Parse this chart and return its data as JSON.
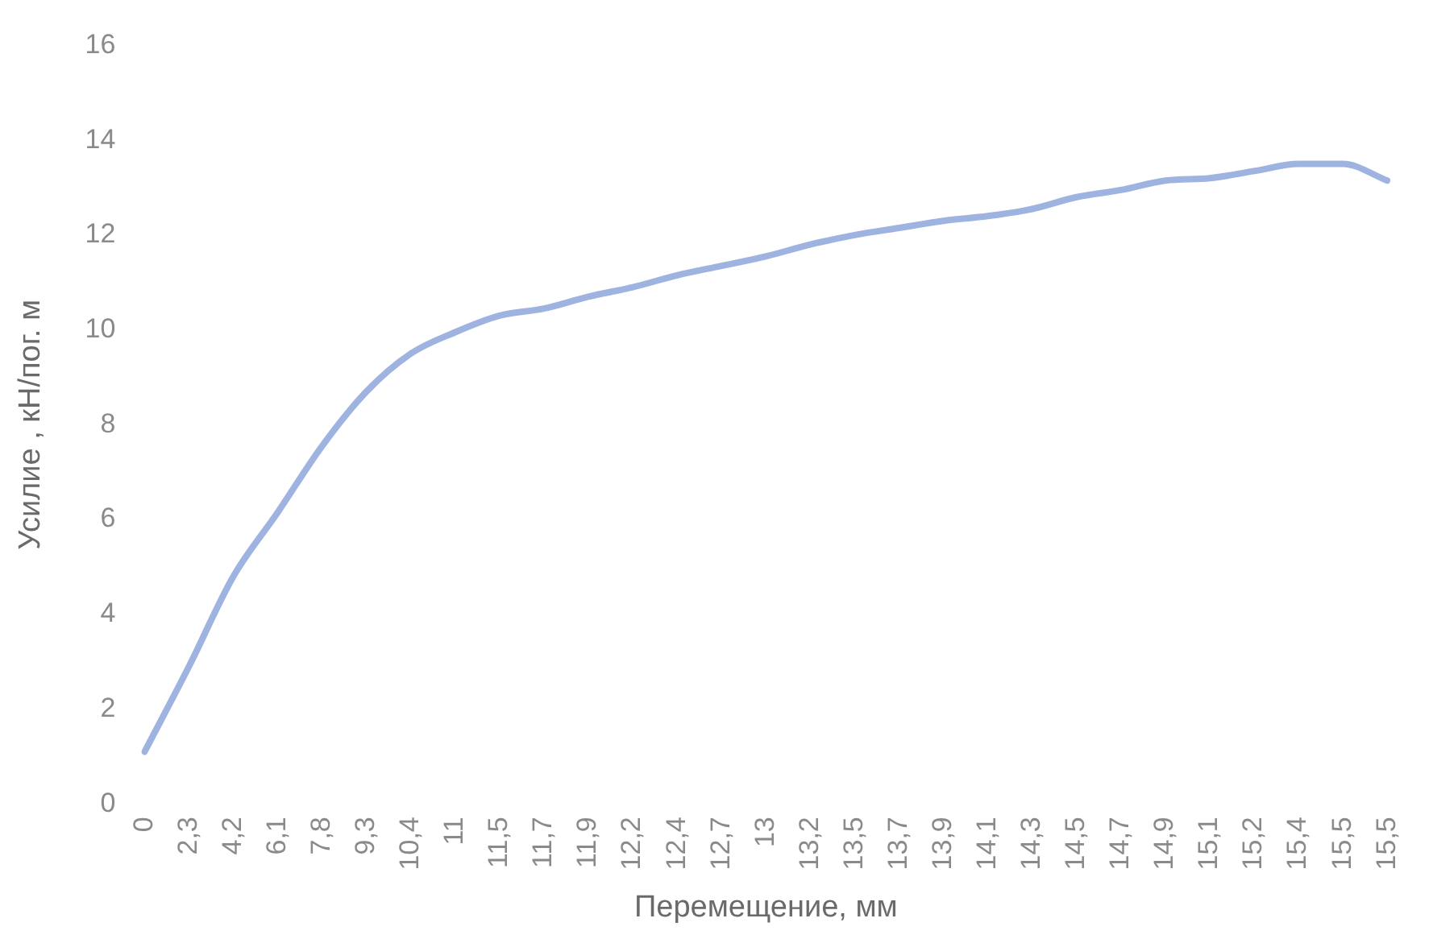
{
  "chart_data": {
    "type": "line",
    "xlabel": "Перемещение, мм",
    "ylabel": "Усилие , кН/пог. м",
    "categories": [
      "0",
      "2,3",
      "4,2",
      "6,1",
      "7,8",
      "9,3",
      "10,4",
      "11",
      "11,5",
      "11,7",
      "11,9",
      "12,2",
      "12,4",
      "12,7",
      "13",
      "13,2",
      "13,5",
      "13,7",
      "13,9",
      "14,1",
      "14,3",
      "14,5",
      "14,7",
      "14,9",
      "15,1",
      "15,2",
      "15,4",
      "15,5",
      "15,5"
    ],
    "series": [
      {
        "color": "#9fb3e0",
        "values": [
          1.1,
          2.9,
          4.8,
          6.15,
          7.55,
          8.7,
          9.5,
          9.95,
          10.3,
          10.45,
          10.7,
          10.9,
          11.15,
          11.35,
          11.55,
          11.8,
          12.0,
          12.15,
          12.3,
          12.4,
          12.55,
          12.8,
          12.95,
          13.15,
          13.2,
          13.35,
          13.5,
          13.5,
          13.15
        ]
      }
    ],
    "ylim": [
      0,
      16
    ],
    "yticks": [
      0,
      2,
      4,
      6,
      8,
      10,
      12,
      14,
      16
    ],
    "grid": false,
    "legend": false,
    "marker": "none",
    "line_style": "solid"
  }
}
